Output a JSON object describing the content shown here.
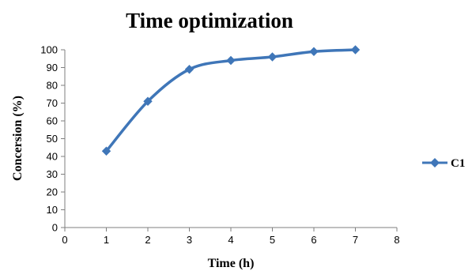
{
  "chart_data": {
    "type": "line",
    "title": "Time optimization",
    "xlabel": "Time (h)",
    "ylabel": "Concersion (%)",
    "xlim": [
      0,
      8
    ],
    "ylim": [
      0,
      100
    ],
    "xticks": [
      "0",
      "1",
      "2",
      "3",
      "4",
      "5",
      "6",
      "7",
      "8"
    ],
    "yticks": [
      "0",
      "10",
      "20",
      "30",
      "40",
      "50",
      "60",
      "70",
      "80",
      "90",
      "100"
    ],
    "grid": false,
    "legend_position": "right",
    "series": [
      {
        "name": "C1",
        "color": "#3f76b8",
        "marker": "diamond",
        "x": [
          1,
          2,
          3,
          4,
          5,
          6,
          7
        ],
        "y": [
          43,
          71,
          89,
          94,
          96,
          99,
          100
        ]
      }
    ]
  }
}
